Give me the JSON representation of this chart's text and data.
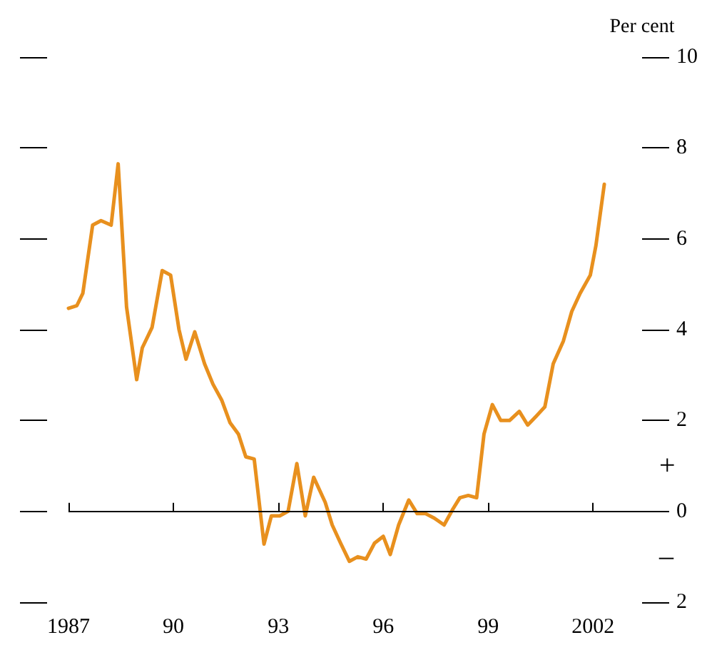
{
  "chart_data": {
    "type": "line",
    "ylabel": "Per cent",
    "annotations": [
      "+",
      "–"
    ],
    "x": [
      1987.0,
      1987.24,
      1987.41,
      1987.69,
      1987.93,
      1988.22,
      1988.42,
      1988.66,
      1988.95,
      1989.11,
      1989.39,
      1989.68,
      1989.92,
      1990.16,
      1990.36,
      1990.61,
      1990.89,
      1991.13,
      1991.38,
      1991.62,
      1991.86,
      1992.07,
      1992.31,
      1992.59,
      1992.8,
      1993.04,
      1993.28,
      1993.53,
      1993.77,
      1994.01,
      1994.34,
      1994.54,
      1994.78,
      1995.03,
      1995.27,
      1995.51,
      1995.75,
      1996.0,
      1996.2,
      1996.44,
      1996.73,
      1996.97,
      1997.21,
      1997.46,
      1997.74,
      1997.99,
      1998.19,
      1998.43,
      1998.67,
      1998.88,
      1999.12,
      1999.36,
      1999.61,
      1999.89,
      2000.13,
      2000.38,
      2000.62,
      2000.86,
      2001.15,
      2001.39,
      2001.63,
      2001.92,
      2002.08,
      2002.32
    ],
    "series": [
      {
        "color": "#e8901e",
        "values": [
          4.47,
          4.53,
          4.8,
          6.3,
          6.4,
          6.3,
          7.65,
          4.5,
          2.9,
          3.6,
          4.05,
          5.3,
          5.2,
          4.0,
          3.35,
          3.95,
          3.25,
          2.8,
          2.45,
          1.95,
          1.7,
          1.2,
          1.15,
          -0.72,
          -0.1,
          -0.1,
          0.0,
          1.05,
          -0.1,
          0.75,
          0.2,
          -0.3,
          -0.7,
          -1.1,
          -1.0,
          -1.05,
          -0.7,
          -0.55,
          -0.95,
          -0.3,
          0.25,
          -0.05,
          -0.05,
          -0.15,
          -0.3,
          0.05,
          0.3,
          0.35,
          0.3,
          1.7,
          2.35,
          2.0,
          2.0,
          2.2,
          1.9,
          2.1,
          2.3,
          3.25,
          3.75,
          4.4,
          4.8,
          5.2,
          5.85,
          7.2
        ]
      }
    ],
    "xlim": [
      1987,
      2003.4
    ],
    "xticks": [
      1987,
      {
        "value": 1990,
        "label": "90"
      },
      {
        "value": 1993,
        "label": "93"
      },
      {
        "value": 1996,
        "label": "96"
      },
      {
        "value": 1999,
        "label": "99"
      },
      2002
    ],
    "ylim": [
      -2,
      10
    ],
    "yticks": [
      {
        "value": -2,
        "label": "2"
      },
      0,
      2,
      4,
      6,
      8,
      10
    ],
    "ref_lines": [
      {
        "axis": "y",
        "value": 0,
        "color": "#000000"
      }
    ],
    "grid": false,
    "marker": "none",
    "line_style": "solid"
  }
}
